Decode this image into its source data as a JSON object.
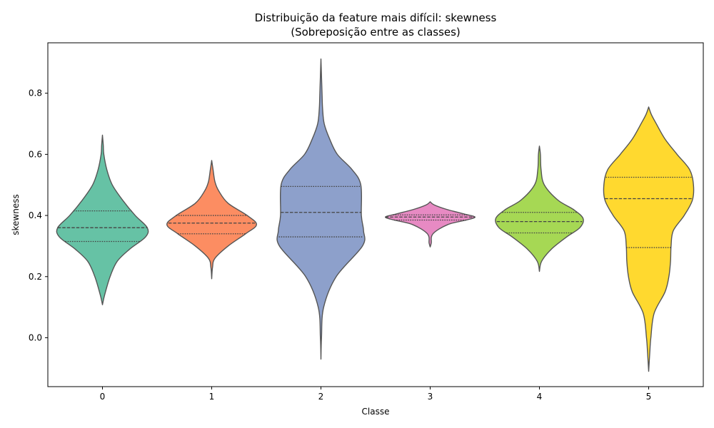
{
  "chart_data": {
    "type": "violin",
    "title": "Distribuição da feature mais difícil: skewness",
    "subtitle": "(Sobreposição entre as classes)",
    "xlabel": "Classe",
    "ylabel": "skewness",
    "ylim": [
      -0.16,
      0.965
    ],
    "yticks": [
      "0.0",
      "0.2",
      "0.4",
      "0.6",
      "0.8"
    ],
    "ytick_values": [
      0.0,
      0.2,
      0.4,
      0.6,
      0.8
    ],
    "grid": false,
    "categories": [
      "0",
      "1",
      "2",
      "3",
      "4",
      "5"
    ],
    "violins": [
      {
        "category": "0",
        "color": "#66c2a5",
        "quartiles": [
          0.315,
          0.36,
          0.415
        ],
        "profile": [
          [
            0.108,
            0.0
          ],
          [
            0.14,
            0.04
          ],
          [
            0.2,
            0.14
          ],
          [
            0.25,
            0.27
          ],
          [
            0.29,
            0.5
          ],
          [
            0.33,
            0.79
          ],
          [
            0.36,
            0.82
          ],
          [
            0.4,
            0.6
          ],
          [
            0.45,
            0.37
          ],
          [
            0.5,
            0.18
          ],
          [
            0.55,
            0.08
          ],
          [
            0.6,
            0.025
          ],
          [
            0.63,
            0.015
          ],
          [
            0.663,
            0.0
          ]
        ]
      },
      {
        "category": "1",
        "color": "#fc8d62",
        "quartiles": [
          0.34,
          0.375,
          0.4
        ],
        "profile": [
          [
            0.193,
            0.0
          ],
          [
            0.23,
            0.015
          ],
          [
            0.26,
            0.06
          ],
          [
            0.3,
            0.3
          ],
          [
            0.34,
            0.62
          ],
          [
            0.37,
            0.82
          ],
          [
            0.4,
            0.65
          ],
          [
            0.44,
            0.3
          ],
          [
            0.48,
            0.13
          ],
          [
            0.51,
            0.06
          ],
          [
            0.55,
            0.025
          ],
          [
            0.58,
            0.0
          ]
        ]
      },
      {
        "category": "2",
        "color": "#8da0cb",
        "quartiles": [
          0.33,
          0.41,
          0.495
        ],
        "profile": [
          [
            -0.07,
            0.0
          ],
          [
            0.0,
            0.01
          ],
          [
            0.1,
            0.05
          ],
          [
            0.2,
            0.28
          ],
          [
            0.3,
            0.76
          ],
          [
            0.35,
            0.78
          ],
          [
            0.4,
            0.74
          ],
          [
            0.5,
            0.73
          ],
          [
            0.55,
            0.57
          ],
          [
            0.6,
            0.3
          ],
          [
            0.65,
            0.16
          ],
          [
            0.7,
            0.06
          ],
          [
            0.75,
            0.03
          ],
          [
            0.8,
            0.02
          ],
          [
            0.912,
            0.0
          ]
        ]
      },
      {
        "category": "3",
        "color": "#e78ac3",
        "quartiles": [
          0.385,
          0.395,
          0.402
        ],
        "profile": [
          [
            0.297,
            0.0
          ],
          [
            0.31,
            0.02
          ],
          [
            0.34,
            0.05
          ],
          [
            0.37,
            0.32
          ],
          [
            0.385,
            0.66
          ],
          [
            0.395,
            0.82
          ],
          [
            0.405,
            0.62
          ],
          [
            0.42,
            0.3
          ],
          [
            0.435,
            0.07
          ],
          [
            0.445,
            0.0
          ]
        ]
      },
      {
        "category": "4",
        "color": "#a6d854",
        "quartiles": [
          0.343,
          0.38,
          0.41
        ],
        "profile": [
          [
            0.217,
            0.0
          ],
          [
            0.25,
            0.04
          ],
          [
            0.29,
            0.22
          ],
          [
            0.33,
            0.5
          ],
          [
            0.36,
            0.74
          ],
          [
            0.39,
            0.8
          ],
          [
            0.42,
            0.62
          ],
          [
            0.45,
            0.34
          ],
          [
            0.5,
            0.09
          ],
          [
            0.55,
            0.03
          ],
          [
            0.6,
            0.018
          ],
          [
            0.627,
            0.0
          ]
        ]
      },
      {
        "category": "5",
        "color": "#ffd92f",
        "quartiles": [
          0.295,
          0.455,
          0.525
        ],
        "profile": [
          [
            -0.11,
            0.0
          ],
          [
            -0.05,
            0.02
          ],
          [
            0.0,
            0.04
          ],
          [
            0.08,
            0.1
          ],
          [
            0.15,
            0.3
          ],
          [
            0.2,
            0.37
          ],
          [
            0.25,
            0.4
          ],
          [
            0.3,
            0.41
          ],
          [
            0.35,
            0.45
          ],
          [
            0.4,
            0.65
          ],
          [
            0.45,
            0.8
          ],
          [
            0.5,
            0.82
          ],
          [
            0.55,
            0.75
          ],
          [
            0.6,
            0.52
          ],
          [
            0.65,
            0.3
          ],
          [
            0.7,
            0.14
          ],
          [
            0.73,
            0.05
          ],
          [
            0.755,
            0.0
          ]
        ]
      }
    ]
  }
}
